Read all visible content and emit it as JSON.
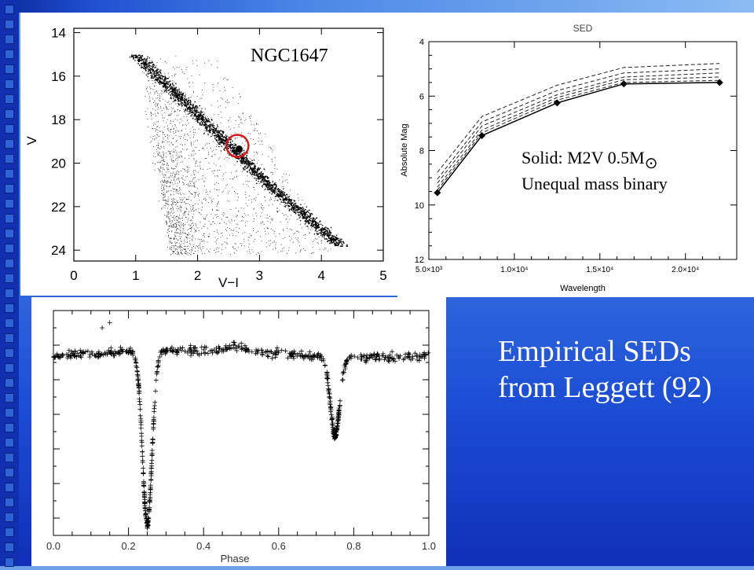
{
  "caption": {
    "line1": "Empirical SEDs",
    "line2": "from Leggett (92)"
  },
  "colors": {
    "background": "#2a5fdc",
    "circle": "#d81818",
    "caption": "#ffffff"
  },
  "chart_data": [
    {
      "type": "scatter",
      "annotation": "NGC1647",
      "xlabel": "V−I",
      "ylabel": "V",
      "xlim": [
        0,
        5
      ],
      "ylim": [
        24.5,
        13.8
      ],
      "x_ticks": [
        "0",
        "1",
        "2",
        "3",
        "4",
        "5"
      ],
      "y_ticks": [
        "14",
        "16",
        "18",
        "20",
        "22",
        "24"
      ],
      "y_inverted": true,
      "highlighted_star": {
        "x": 2.67,
        "y": 19.35
      },
      "distributions": [
        {
          "name": "",
          "points": 9000,
          "region": "field"
        },
        {
          "name": "",
          "points": 2200,
          "region": "main sequence"
        }
      ]
    },
    {
      "type": "line",
      "title": "SED",
      "xlabel": "Wavelength",
      "ylabel": "Absolute Mag",
      "xlim": [
        5000,
        23000
      ],
      "ylim": [
        12,
        4
      ],
      "x_ticks": [
        "5.0×10³",
        "1.0×10⁴",
        "1.5×10⁴",
        "2.0×10⁴"
      ],
      "y_ticks": [
        "4",
        "6",
        "8",
        "10",
        "12"
      ],
      "y_inverted": true,
      "annotation_line1": "Solid: M2V 0.5M",
      "annotation_sun": "⊙",
      "annotation_line2": "Unequal mass binary",
      "x": [
        5500,
        8100,
        12500,
        16400,
        22000
      ],
      "solid": {
        "style": "solid",
        "values": [
          9.55,
          7.45,
          6.25,
          5.55,
          5.5
        ],
        "markers": true
      },
      "dashed": [
        {
          "values": [
            8.8,
            6.75,
            5.6,
            4.95,
            4.8
          ]
        },
        {
          "values": [
            9.05,
            6.95,
            5.8,
            5.15,
            5.0
          ]
        },
        {
          "values": [
            9.2,
            7.1,
            5.95,
            5.3,
            5.15
          ]
        },
        {
          "values": [
            9.35,
            7.25,
            6.05,
            5.4,
            5.3
          ]
        },
        {
          "values": [
            9.45,
            7.35,
            6.15,
            5.5,
            5.42
          ]
        }
      ]
    },
    {
      "type": "scatter",
      "xlabel": "Phase",
      "ylabel": "",
      "xlim": [
        0.0,
        1.0
      ],
      "ylim": [
        -1.05,
        0.25
      ],
      "x_ticks": [
        "0.0",
        "0.2",
        "0.4",
        "0.6",
        "0.8",
        "1.0"
      ],
      "marker": "+",
      "primary_eclipse": {
        "phase": 0.25,
        "depth": -1.0
      },
      "secondary_eclipse": {
        "phase": 0.75,
        "depth": -0.45
      },
      "baseline": 0.0,
      "outliers": [
        {
          "x": 0.13,
          "y": 0.15
        },
        {
          "x": 0.15,
          "y": 0.18
        }
      ]
    }
  ]
}
